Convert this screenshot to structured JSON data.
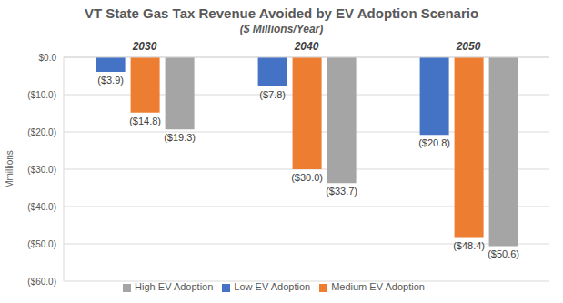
{
  "chart_data": {
    "type": "bar",
    "title": "VT State Gas Tax Revenue Avoided by EV Adoption Scenario",
    "subtitle": "($ Millions/Year)",
    "y_label": "Mmillions",
    "categories": [
      "2030",
      "2040",
      "2050"
    ],
    "series": [
      {
        "name": "Low EV Adoption",
        "color": "#4472c4",
        "values": [
          -3.9,
          -7.8,
          -20.8
        ],
        "value_labels": [
          "($3.9)",
          "($7.8)",
          "($20.8)"
        ]
      },
      {
        "name": "Medium EV Adoption",
        "color": "#ed7d31",
        "values": [
          -14.8,
          -30.0,
          -48.4
        ],
        "value_labels": [
          "($14.8)",
          "($30.0)",
          "($48.4)"
        ]
      },
      {
        "name": "High EV Adoption",
        "color": "#a5a5a5",
        "values": [
          -19.3,
          -33.7,
          -50.6
        ],
        "value_labels": [
          "($19.3)",
          "($33.7)",
          "($50.6)"
        ]
      }
    ],
    "ylim": [
      -60,
      0
    ],
    "yticks": [
      {
        "value": -60,
        "label": "($60.0)"
      },
      {
        "value": -50,
        "label": "($50.0)"
      },
      {
        "value": -40,
        "label": "($40.0)"
      },
      {
        "value": -30,
        "label": "($30.0)"
      },
      {
        "value": -20,
        "label": "($20.0)"
      },
      {
        "value": -10,
        "label": "($10.0)"
      },
      {
        "value": 0,
        "label": "$0.0"
      }
    ],
    "grid": true,
    "legend": "bottom",
    "data_labels": true
  }
}
